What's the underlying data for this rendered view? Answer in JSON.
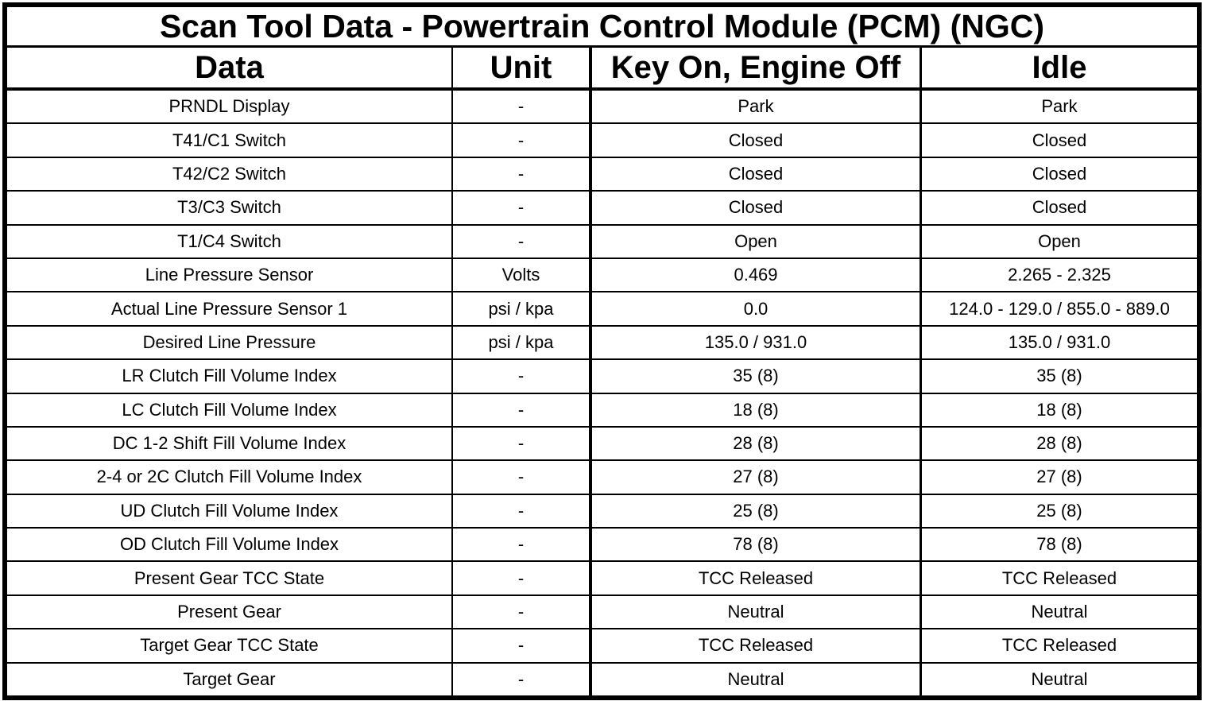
{
  "title": "Scan Tool Data - Powertrain Control Module (PCM) (NGC)",
  "colors": {
    "foreground": "#000000",
    "background": "#ffffff"
  },
  "table": {
    "headers": [
      "Data",
      "Unit",
      "Key On, Engine Off",
      "Idle"
    ],
    "rows": [
      [
        "PRNDL Display",
        "-",
        "Park",
        "Park"
      ],
      [
        "T41/C1 Switch",
        "-",
        "Closed",
        "Closed"
      ],
      [
        "T42/C2 Switch",
        "-",
        "Closed",
        "Closed"
      ],
      [
        "T3/C3 Switch",
        "-",
        "Closed",
        "Closed"
      ],
      [
        "T1/C4 Switch",
        "-",
        "Open",
        "Open"
      ],
      [
        "Line Pressure Sensor",
        "Volts",
        "0.469",
        "2.265 - 2.325"
      ],
      [
        "Actual Line Pressure Sensor 1",
        "psi / kpa",
        "0.0",
        "124.0 - 129.0 / 855.0 - 889.0"
      ],
      [
        "Desired Line Pressure",
        "psi / kpa",
        "135.0 / 931.0",
        "135.0 / 931.0"
      ],
      [
        "LR Clutch Fill Volume Index",
        "-",
        "35 (8)",
        "35 (8)"
      ],
      [
        "LC Clutch Fill Volume Index",
        "-",
        "18 (8)",
        "18 (8)"
      ],
      [
        "DC 1-2 Shift Fill Volume Index",
        "-",
        "28 (8)",
        "28 (8)"
      ],
      [
        "2-4 or 2C Clutch Fill Volume Index",
        "-",
        "27 (8)",
        "27 (8)"
      ],
      [
        "UD Clutch Fill Volume Index",
        "-",
        "25 (8)",
        "25 (8)"
      ],
      [
        "OD Clutch Fill Volume Index",
        "-",
        "78 (8)",
        "78 (8)"
      ],
      [
        "Present Gear TCC State",
        "-",
        "TCC Released",
        "TCC Released"
      ],
      [
        "Present Gear",
        "-",
        "Neutral",
        "Neutral"
      ],
      [
        "Target Gear TCC State",
        "-",
        "TCC Released",
        "TCC Released"
      ],
      [
        "Target Gear",
        "-",
        "Neutral",
        "Neutral"
      ]
    ]
  }
}
